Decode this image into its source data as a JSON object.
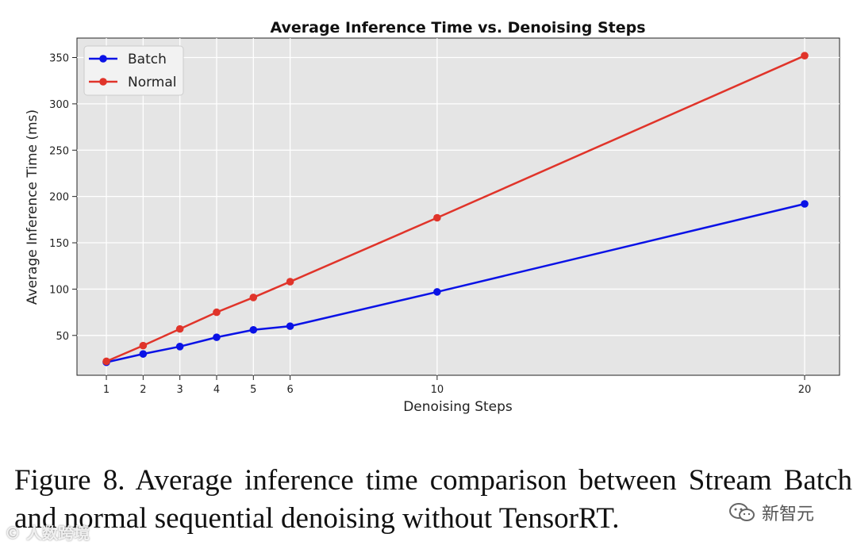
{
  "chart_data": {
    "type": "line",
    "title": "Average Inference Time vs. Denoising Steps",
    "xlabel": "Denoising Steps",
    "ylabel": "Average Inference Time (ms)",
    "x": [
      1,
      2,
      3,
      4,
      5,
      6,
      10,
      20
    ],
    "x_ticks": [
      "1",
      "2",
      "3",
      "4",
      "5",
      "6",
      "10",
      "20"
    ],
    "y_ticks": [
      "50",
      "100",
      "150",
      "200",
      "250",
      "300",
      "350"
    ],
    "xlim": [
      0.2,
      20.95
    ],
    "ylim": [
      7,
      371
    ],
    "grid": true,
    "legend_position": "top-left",
    "series": [
      {
        "name": "Batch",
        "color": "#0a12e6",
        "values": [
          21,
          30,
          38,
          48,
          56,
          60,
          97,
          192
        ]
      },
      {
        "name": "Normal",
        "color": "#e0342a",
        "values": [
          22,
          39,
          57,
          75,
          91,
          108,
          177,
          352
        ]
      }
    ]
  },
  "caption": "Figure 8.  Average inference time comparison between Stream Batch and normal sequential denoising without TensorRT.",
  "watermarks": {
    "left": "©  人数跨境",
    "right": "新智元"
  }
}
